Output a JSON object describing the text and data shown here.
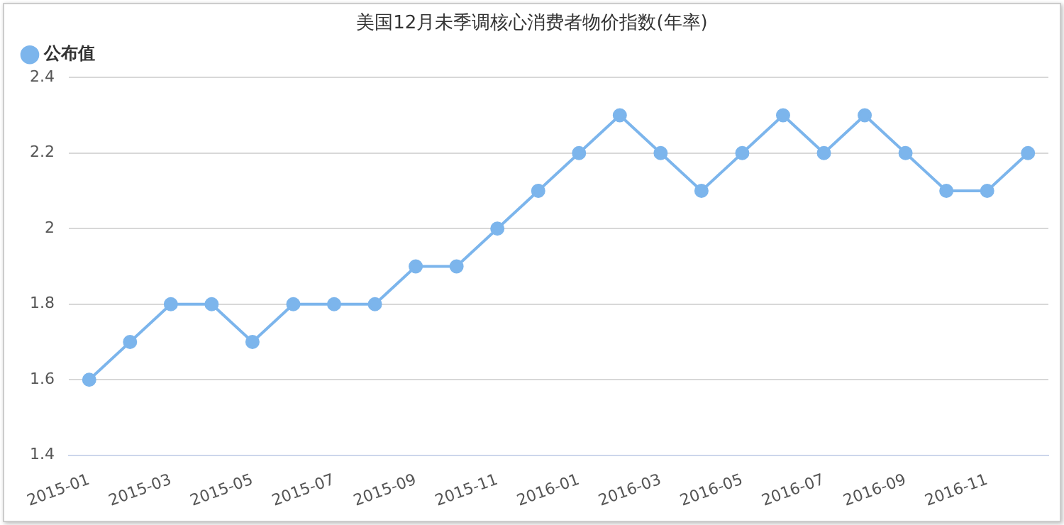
{
  "chart_data": {
    "type": "line",
    "title": "美国12月未季调核心消费者物价指数(年率)",
    "categories": [
      "2015-01",
      null,
      "2015-03",
      null,
      "2015-05",
      null,
      "2015-07",
      null,
      "2015-09",
      null,
      "2015-11",
      null,
      "2016-01",
      null,
      "2016-03",
      null,
      "2016-05",
      null,
      "2016-07",
      null,
      "2016-09",
      null,
      "2016-11",
      null
    ],
    "series": [
      {
        "name": "公布值",
        "color": "#7cb5ec",
        "values": [
          1.6,
          1.7,
          1.8,
          1.8,
          1.7,
          1.8,
          1.8,
          1.8,
          1.9,
          1.9,
          2.0,
          2.1,
          2.2,
          2.3,
          2.2,
          2.1,
          2.2,
          2.3,
          2.2,
          2.3,
          2.2,
          2.1,
          2.1,
          2.2
        ]
      }
    ],
    "ylim": [
      1.4,
      2.4
    ],
    "yticks": [
      1.4,
      1.6,
      1.8,
      2,
      2.2,
      2.4
    ],
    "grid": "y",
    "legend": "top left",
    "marker": "circle",
    "line_style": "solid"
  }
}
